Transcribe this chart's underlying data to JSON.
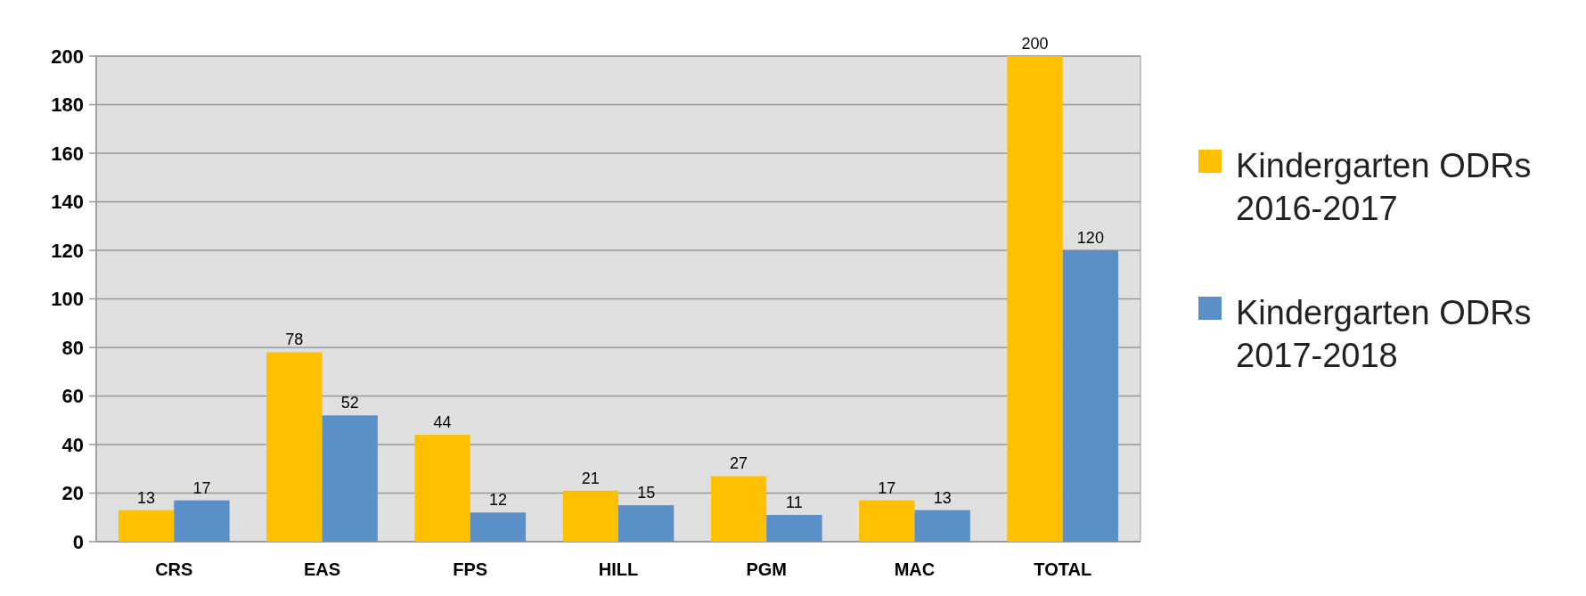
{
  "chart_data": {
    "type": "bar",
    "categories": [
      "CRS",
      "EAS",
      "FPS",
      "HILL",
      "PGM",
      "MAC",
      "TOTAL"
    ],
    "series": [
      {
        "name": "Kindergarten ODRs 2016-2017",
        "color": "#ffc000",
        "values": [
          13,
          78,
          44,
          21,
          27,
          17,
          200
        ]
      },
      {
        "name": "Kindergarten ODRs 2017-2018",
        "color": "#5b8fc7",
        "values": [
          17,
          52,
          12,
          15,
          11,
          13,
          120
        ]
      }
    ],
    "ylim": [
      0,
      200
    ],
    "yticks": [
      0,
      20,
      40,
      60,
      80,
      100,
      120,
      140,
      160,
      180,
      200
    ],
    "grid": "y",
    "legend": "right",
    "data_labels": true
  }
}
